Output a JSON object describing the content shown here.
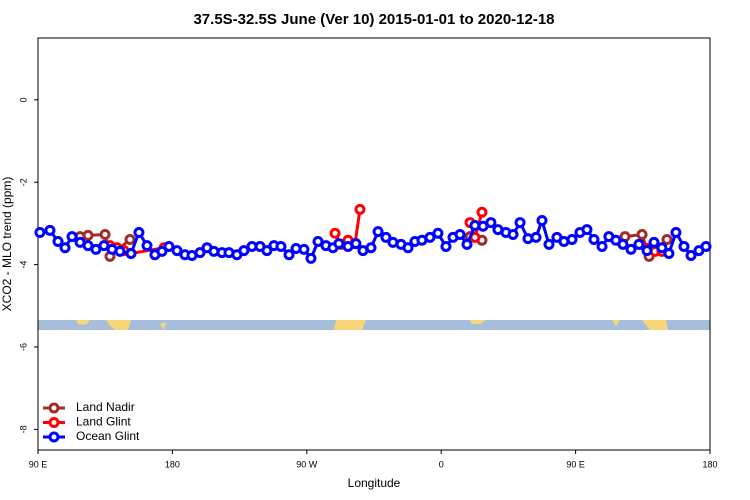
{
  "chart_data": {
    "type": "line",
    "title": "37.5S-32.5S June (Ver 10)   2015-01-01 to 2020-12-18",
    "x_label": "Longitude",
    "y_label": "XCO2 - MLO trend (ppm)",
    "xlim": [
      90,
      540
    ],
    "ylim": [
      -8.5,
      1.5
    ],
    "xticks": [
      {
        "value": 90,
        "label": "90 E"
      },
      180,
      {
        "value": 270,
        "label": "90 W"
      },
      {
        "value": 360,
        "label": "0"
      },
      {
        "value": 450,
        "label": "90 E"
      },
      {
        "value": 540,
        "label": "180"
      }
    ],
    "yticks": [
      0,
      -2,
      -4,
      -6,
      -8
    ],
    "legend": "bottom-left",
    "series": [
      {
        "name": "Land Nadir",
        "color": "#a52a2a",
        "x": [
          118.2,
          123.5,
          134.9,
          138.2,
          151.6,
          null,
          379.3,
          387.3,
          null,
          483.1,
          494.5,
          499.2,
          511.2
        ],
        "values": [
          -3.32,
          -3.29,
          -3.27,
          -3.8,
          -3.39,
          null,
          -3.32,
          -3.41,
          null,
          -3.32,
          -3.27,
          -3.8,
          -3.39
        ]
      },
      {
        "name": "Land Glint",
        "color": "#ff0000",
        "x": [
          138.2,
          142.9,
          147.6,
          152.3,
          174.4,
          null,
          288.9,
          292.9,
          297.6,
          302.3,
          305.6,
          null,
          379.3,
          382.6,
          387.3,
          null,
          493.1,
          497.8,
          503.2,
          507.8
        ],
        "values": [
          -3.54,
          -3.59,
          -3.66,
          -3.73,
          -3.59,
          null,
          -3.24,
          -3.51,
          -3.41,
          -3.49,
          -2.66,
          null,
          -2.98,
          -3.34,
          -2.73,
          null,
          -3.51,
          -3.61,
          -3.68,
          -3.68
        ]
      },
      {
        "name": "Ocean Glint",
        "color": "#0000ff",
        "x": [
          91.3,
          98.0,
          103.4,
          108.1,
          112.8,
          118.2,
          123.5,
          128.8,
          134.2,
          139.6,
          144.9,
          152.3,
          157.6,
          163.0,
          168.3,
          173.0,
          177.7,
          183.1,
          188.4,
          193.1,
          198.5,
          203.2,
          207.8,
          213.2,
          217.9,
          223.2,
          227.9,
          233.3,
          238.7,
          243.3,
          248.0,
          252.7,
          258.1,
          262.8,
          268.1,
          272.8,
          277.5,
          282.8,
          287.5,
          291.5,
          297.6,
          302.9,
          307.6,
          313.0,
          317.7,
          323.0,
          327.7,
          333.1,
          337.8,
          342.4,
          347.1,
          352.5,
          357.8,
          363.2,
          367.9,
          372.6,
          377.3,
          382.6,
          388.0,
          393.3,
          398.0,
          403.4,
          408.1,
          412.8,
          418.1,
          423.5,
          427.5,
          432.2,
          437.5,
          442.2,
          447.6,
          452.9,
          457.6,
          462.3,
          467.7,
          472.3,
          477.0,
          481.7,
          487.1,
          492.4,
          497.8,
          502.5,
          507.8,
          512.5,
          517.2,
          522.6,
          527.3,
          532.6,
          537.3
        ],
        "values": [
          -3.22,
          -3.17,
          -3.44,
          -3.59,
          -3.32,
          -3.46,
          -3.54,
          -3.63,
          -3.54,
          -3.63,
          -3.68,
          -3.73,
          -3.22,
          -3.54,
          -3.76,
          -3.68,
          -3.56,
          -3.66,
          -3.76,
          -3.78,
          -3.71,
          -3.59,
          -3.68,
          -3.71,
          -3.71,
          -3.76,
          -3.66,
          -3.56,
          -3.56,
          -3.66,
          -3.54,
          -3.56,
          -3.76,
          -3.61,
          -3.63,
          -3.85,
          -3.44,
          -3.54,
          -3.59,
          -3.49,
          -3.56,
          -3.49,
          -3.66,
          -3.59,
          -3.2,
          -3.34,
          -3.46,
          -3.51,
          -3.59,
          -3.44,
          -3.41,
          -3.34,
          -3.24,
          -3.56,
          -3.34,
          -3.27,
          -3.51,
          -3.05,
          -3.07,
          -2.98,
          -3.15,
          -3.22,
          -3.27,
          -2.98,
          -3.37,
          -3.34,
          -2.93,
          -3.51,
          -3.34,
          -3.44,
          -3.39,
          -3.22,
          -3.15,
          -3.39,
          -3.56,
          -3.32,
          -3.41,
          -3.51,
          -3.63,
          -3.51,
          -3.66,
          -3.46,
          -3.59,
          -3.73,
          -3.22,
          -3.56,
          -3.78,
          -3.66,
          -3.56
        ]
      }
    ]
  }
}
